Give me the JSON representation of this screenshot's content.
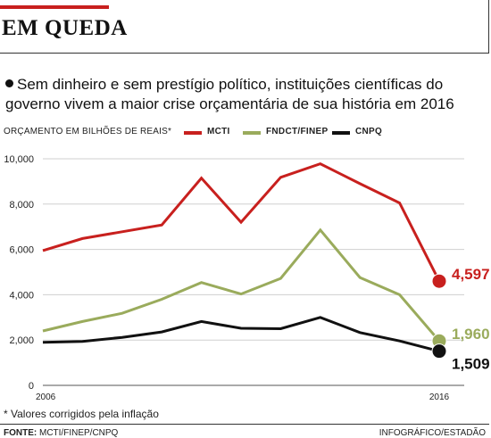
{
  "header": {
    "title": "EM QUEDA",
    "subtitle": "Sem dinheiro e sem prestígio político, instituições científicas do governo vivem a maior crise orçamentária de sua história em 2016"
  },
  "chart_data": {
    "type": "line",
    "title": "",
    "ylabel": "ORÇAMENTO EM BILHÕES DE REAIS*",
    "xlabel": "",
    "x": [
      2006,
      2007,
      2008,
      2009,
      2010,
      2011,
      2012,
      2013,
      2014,
      2015,
      2016
    ],
    "x_tick_labels": [
      "2006",
      "2016"
    ],
    "ylim": [
      0,
      10000
    ],
    "y_ticks": [
      0,
      2000,
      4000,
      6000,
      8000,
      10000
    ],
    "y_tick_labels": [
      "0",
      "2,000",
      "4,000",
      "6,000",
      "8,000",
      "10,000"
    ],
    "grid": true,
    "legend_position": "top",
    "series": [
      {
        "name": "MCTI",
        "color": "#c8201e",
        "values": [
          5950,
          6480,
          6780,
          7080,
          9150,
          7200,
          9180,
          9780,
          8900,
          8050,
          4597
        ],
        "end_label": "4,597"
      },
      {
        "name": "FNDCT/FINEP",
        "color": "#9aab5c",
        "values": [
          2400,
          2820,
          3180,
          3800,
          4540,
          4030,
          4720,
          6860,
          4760,
          4000,
          1960
        ],
        "end_label": "1,960"
      },
      {
        "name": "CNPQ",
        "color": "#111111",
        "values": [
          1900,
          1940,
          2120,
          2360,
          2820,
          2520,
          2500,
          3000,
          2330,
          1960,
          1509
        ],
        "end_label": "1,509"
      }
    ]
  },
  "footer": {
    "footnote": "* Valores corrigidos pela inflação",
    "source_label": "FONTE:",
    "source_text": " MCTI/FINEP/CNPQ",
    "credit": "INFOGRÁFICO/ESTADÃO"
  },
  "colors": {
    "accent": "#c8201e"
  }
}
